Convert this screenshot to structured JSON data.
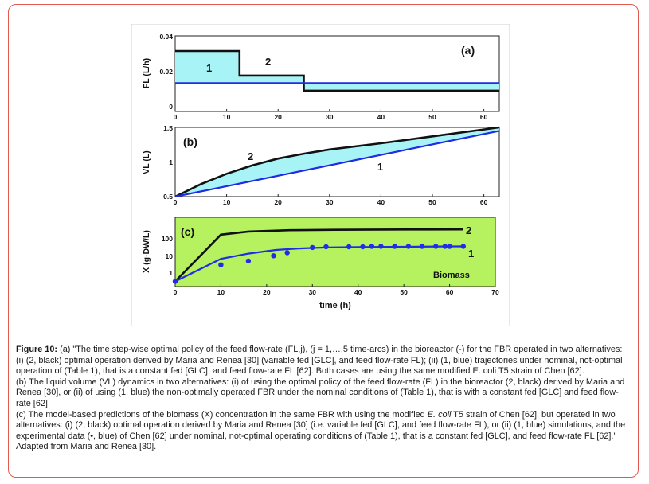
{
  "figure": {
    "panels": [
      {
        "tag": "(a)",
        "ylabel": "FL (L/h)",
        "yticks": [
          "0.04",
          "0.02",
          "0"
        ],
        "xticks": [
          "0",
          "10",
          "20",
          "30",
          "40",
          "50",
          "60"
        ],
        "curve_labels": [
          "1",
          "2"
        ]
      },
      {
        "tag": "(b)",
        "ylabel": "VL (L)",
        "yticks": [
          "1.5",
          "1",
          "0.5"
        ],
        "xticks": [
          "0",
          "10",
          "20",
          "30",
          "40",
          "50",
          "60"
        ],
        "curve_labels": [
          "2",
          "1"
        ]
      },
      {
        "tag": "(c)",
        "ylabel": "X (g-DW/L)",
        "yticks": [
          "100",
          "10",
          "1"
        ],
        "xticks": [
          "0",
          "10",
          "20",
          "30",
          "40",
          "50",
          "60",
          "70"
        ],
        "curve_labels": [
          "2",
          "1"
        ],
        "annotation": "Biomass",
        "xlabel": "time (h)"
      }
    ],
    "colors": {
      "fill": "#a8f3f6",
      "green_bg": "#b6f25f",
      "black": "#111111",
      "blue": "#1f2ee6"
    }
  },
  "chart_data": [
    {
      "type": "line",
      "tag": "(a)",
      "ylabel": "FL (L/h)",
      "xlim": [
        0,
        63
      ],
      "ylim": [
        0,
        0.04
      ],
      "series": [
        {
          "name": "2",
          "x": [
            0,
            12.5,
            12.5,
            25,
            25,
            63
          ],
          "values": [
            0.032,
            0.032,
            0.019,
            0.019,
            0.011,
            0.011
          ]
        },
        {
          "name": "1",
          "x": [
            0,
            63
          ],
          "values": [
            0.015,
            0.015
          ]
        }
      ]
    },
    {
      "type": "line",
      "tag": "(b)",
      "ylabel": "VL (L)",
      "xlim": [
        0,
        63
      ],
      "ylim": [
        0.5,
        1.5
      ],
      "series": [
        {
          "name": "2",
          "x": [
            0,
            5,
            10,
            15,
            20,
            25,
            30,
            40,
            50,
            63
          ],
          "values": [
            0.5,
            0.68,
            0.83,
            0.95,
            1.05,
            1.12,
            1.18,
            1.27,
            1.37,
            1.5
          ]
        },
        {
          "name": "1",
          "x": [
            0,
            63
          ],
          "values": [
            0.5,
            1.45
          ]
        }
      ]
    },
    {
      "type": "line",
      "tag": "(c)",
      "ylabel": "X (g-DW/L)",
      "xlabel": "time (h)",
      "xlim": [
        0,
        70
      ],
      "ylim_log10": [
        -1,
        3
      ],
      "series": [
        {
          "name": "2",
          "x": [
            0,
            10,
            16,
            25,
            35,
            45,
            55,
            63
          ],
          "values": [
            0.2,
            100,
            150,
            180,
            190,
            195,
            198,
            200
          ]
        },
        {
          "name": "1",
          "x": [
            0,
            10,
            16,
            22,
            27,
            33,
            40,
            50,
            60,
            63
          ],
          "values": [
            0.2,
            4,
            8,
            13,
            16,
            18,
            19,
            20,
            21,
            21
          ]
        },
        {
          "name": "data",
          "x": [
            0,
            10,
            16,
            21.5,
            24.5,
            30,
            33,
            38,
            41,
            43,
            45,
            48,
            51,
            54,
            57,
            59,
            60,
            63
          ],
          "values": [
            0.2,
            1.8,
            3,
            6,
            9,
            18,
            20,
            20,
            20,
            21,
            21,
            21,
            21,
            21,
            21,
            21,
            21,
            21
          ]
        }
      ]
    }
  ],
  "caption": {
    "label": "Figure 10:",
    "p1": " (a) \"The time step-wise optimal policy of the feed flow-rate (FL,j), (j = 1,…,5 time-arcs) in the bioreactor (-) for the FBR operated in two alternatives: (i) (2, black) optimal operation derived by Maria and Renea [30] (variable fed [GLC], and feed flow-rate FL); (ii) (1, blue) trajectories under nominal, not-optimal operation of (Table 1), that is a constant fed [GLC], and feed flow-rate FL [62]. Both cases are using the same modified E. coli T5 strain of Chen [62].",
    "p2": "(b) The liquid volume (VL) dynamics in two alternatives: (i) of using the optimal policy of the feed flow-rate (FL) in the bioreactor (2, black) derived by Maria and Renea [30], or (ii) of using (1, blue) the non-optimally operated FBR under the nominal conditions of (Table 1), that is with a constant fed [GLC] and feed flow-rate [62].",
    "p3a": "(c) The model-based predictions of the biomass (X) concentration in the same FBR with using the modified ",
    "p3b": "E. coli",
    "p3c": " T5 strain of Chen [62], but operated in two alternatives: (i) (2, black) optimal operation derived by Maria and Renea [30] (i.e. variable fed [GLC], and feed flow-rate FL), or (ii) (1, blue) simulations, and the experimental data (•, blue) of Chen [62] under nominal, not-optimal operating conditions of (Table 1), that is a constant fed [GLC], and feed flow-rate FL [62].\" Adapted from Maria and Renea [30]."
  }
}
